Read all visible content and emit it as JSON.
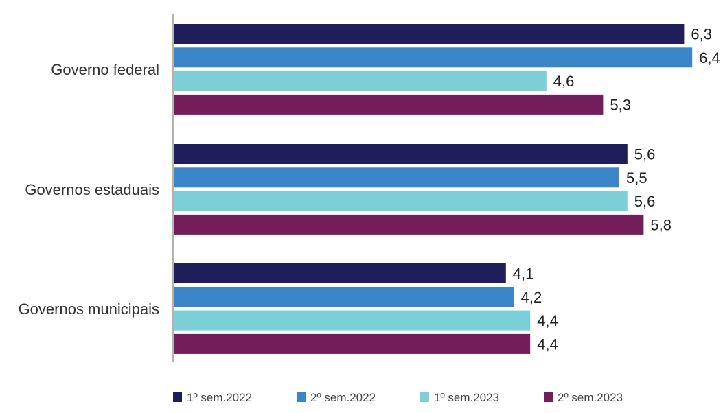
{
  "chart_data": {
    "type": "bar",
    "orientation": "horizontal",
    "title": "",
    "xlabel": "",
    "ylabel": "",
    "xlim": [
      0,
      6.5
    ],
    "grid": false,
    "legend_position": "bottom",
    "decimal_separator": ",",
    "categories": [
      "Governo federal",
      "Governos estaduais",
      "Governos municipais"
    ],
    "series": [
      {
        "name": "1º sem.2022",
        "color": "#1f1d5a",
        "values": [
          6.3,
          5.6,
          4.1
        ]
      },
      {
        "name": "2º sem.2022",
        "color": "#3a86c8",
        "values": [
          6.4,
          5.5,
          4.2
        ]
      },
      {
        "name": "1º sem.2023",
        "color": "#7ccfd6",
        "values": [
          4.6,
          5.6,
          4.4
        ]
      },
      {
        "name": "2º sem.2023",
        "color": "#731d5b",
        "values": [
          5.3,
          5.8,
          4.4
        ]
      }
    ]
  }
}
